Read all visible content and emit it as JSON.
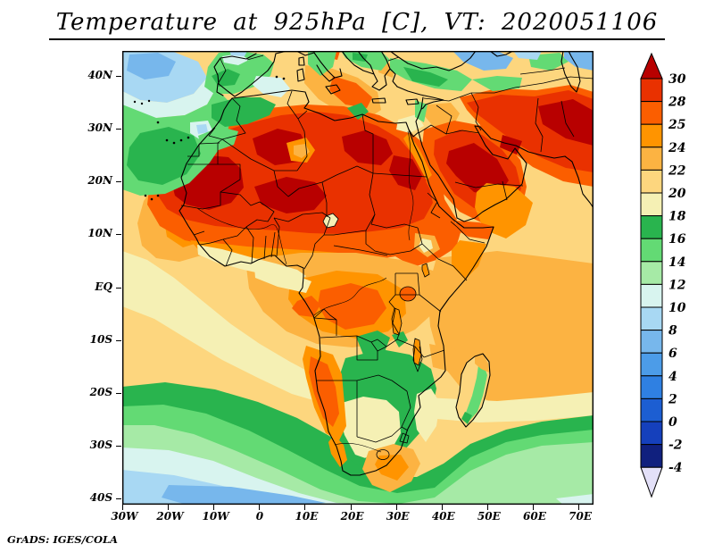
{
  "title": "Temperature at 925hPa [C], VT: 2020051106",
  "footer": "GrADS: IGES/COLA",
  "palette": {
    "gt30": "#b80000",
    "t28_30": "#e93100",
    "t25_28": "#fb5e00",
    "t24_25": "#ff9400",
    "t22_24": "#fcb342",
    "t20_22": "#fdd67e",
    "t18_20": "#f5f0b4",
    "t16_18": "#29b44e",
    "t14_16": "#63da74",
    "t12_14": "#a6eaa6",
    "t10_12": "#d8f4ef",
    "t8_10": "#a8d8f3",
    "t6_8": "#77b7ec",
    "t4_6": "#4c9ce8",
    "t2_4": "#2f80e2",
    "t0_2": "#1c5ed2",
    "tm2_0": "#1540bc",
    "tm4_m2": "#10207e",
    "lt_m4": "#e3e0f8"
  },
  "chart_data": {
    "type": "heatmap",
    "title": "Temperature at 925hPa [C], VT: 2020051106",
    "variable": "Temperature",
    "pressure_level": "925hPa",
    "units": "C",
    "valid_time": "2020051106",
    "credit": "GrADS: IGES/COLA",
    "x_axis": {
      "ticks": [
        "30W",
        "20W",
        "10W",
        "0",
        "10E",
        "20E",
        "30E",
        "40E",
        "50E",
        "60E",
        "70E"
      ]
    },
    "y_axis": {
      "ticks": [
        "40N",
        "30N",
        "20N",
        "10N",
        "EQ",
        "10S",
        "20S",
        "30S",
        "40S"
      ]
    },
    "colorbar": {
      "orientation": "vertical-right",
      "boundary_labels_top_to_bottom": [
        "30",
        "28",
        "25",
        "24",
        "22",
        "20",
        "18",
        "16",
        "14",
        "12",
        "10",
        "8",
        "6",
        "4",
        "2",
        "0",
        "-2",
        "-4"
      ],
      "segment_colors_top_to_bottom": [
        "#b80000",
        "#e93100",
        "#fb5e00",
        "#ff9400",
        "#fcb342",
        "#fdd67e",
        "#f5f0b4",
        "#29b44e",
        "#63da74",
        "#a6eaa6",
        "#d8f4ef",
        "#a8d8f3",
        "#77b7ec",
        "#4c9ce8",
        "#2f80e2",
        "#1c5ed2",
        "#1540bc",
        "#10207e",
        "#e3e0f8"
      ],
      "top_arrow": "above 30",
      "bottom_arrow": "below -4"
    },
    "grid": false,
    "x_range_deg_lon": [
      -30,
      73
    ],
    "y_range_deg_lat": [
      -41,
      45
    ]
  }
}
